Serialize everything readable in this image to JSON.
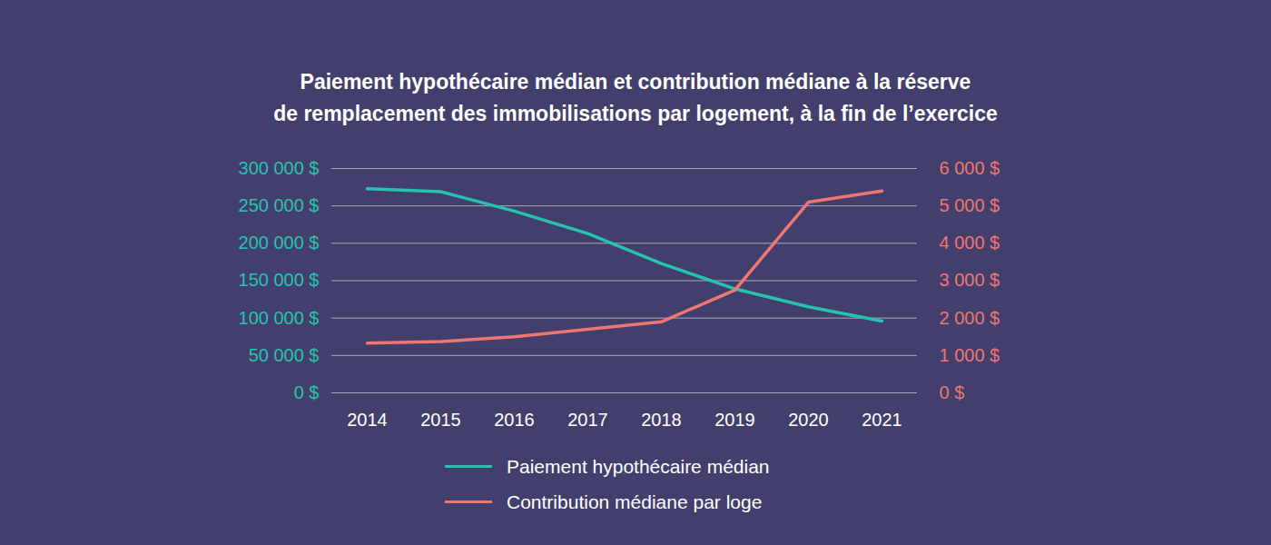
{
  "chart_data": {
    "type": "line",
    "title": "Paiement hypothécaire médian et contribution médiane à la réserve\nde remplacement des immobilisations par logement, à la fin de l’exercice",
    "categories": [
      "2014",
      "2015",
      "2016",
      "2017",
      "2018",
      "2019",
      "2020",
      "2021"
    ],
    "series": [
      {
        "name": "Paiement hypothécaire médian",
        "color": "#27c2b3",
        "values": [
          273000,
          269000,
          243000,
          213000,
          173000,
          139000,
          115000,
          96000
        ]
      },
      {
        "name": "Contribution médiane par loge",
        "color": "#ee7673",
        "axis": "y2",
        "values": [
          1330,
          1370,
          1500,
          1700,
          1900,
          2750,
          5100,
          5400
        ]
      }
    ],
    "ylim": [
      0,
      300000
    ],
    "yticks": [
      {
        "value": 0,
        "label": "0 $"
      },
      {
        "value": 50000,
        "label": "50 000 $"
      },
      {
        "value": 100000,
        "label": "100 000 $"
      },
      {
        "value": 150000,
        "label": "150 000 $"
      },
      {
        "value": 200000,
        "label": "200 000 $"
      },
      {
        "value": 250000,
        "label": "250 000 $"
      },
      {
        "value": 300000,
        "label": "300 000 $"
      }
    ],
    "y2lim": [
      0,
      6000
    ],
    "y2ticks": [
      {
        "value": 0,
        "label": "0 $"
      },
      {
        "value": 1000,
        "label": "1 000 $"
      },
      {
        "value": 2000,
        "label": "2 000 $"
      },
      {
        "value": 3000,
        "label": "3 000 $"
      },
      {
        "value": 4000,
        "label": "4 000 $"
      },
      {
        "value": 5000,
        "label": "5 000 $"
      },
      {
        "value": 6000,
        "label": "6 000 $"
      }
    ],
    "grid": true,
    "legend": "bottom"
  }
}
